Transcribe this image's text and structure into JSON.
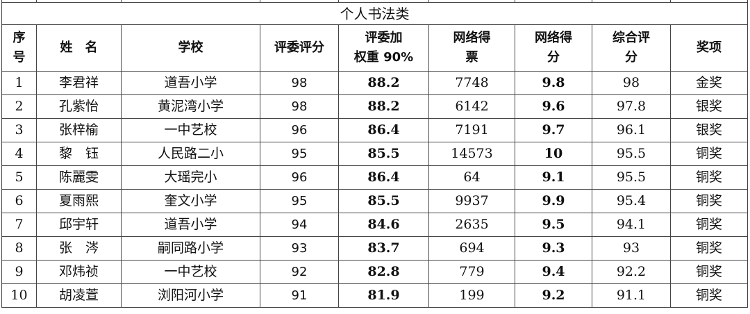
{
  "section_title": "个人书法类",
  "headers": [
    "序\n号",
    "姓　名",
    "学校",
    "评委评分",
    "评委加\n权重 90%",
    "网络得\n票",
    "网络得\n分",
    "综合评\n分",
    "奖项"
  ],
  "rows": [
    [
      "1",
      "李君祥",
      "道吾小学",
      "98",
      "88.2",
      "7748",
      "9.8",
      "98",
      "金奖"
    ],
    [
      "2",
      "孔紫怡",
      "黄泥湾小学",
      "98",
      "88.2",
      "6142",
      "9.6",
      "97.8",
      "银奖"
    ],
    [
      "3",
      "张梓榆",
      "一中艺校",
      "96",
      "86.4",
      "7191",
      "9.7",
      "96.1",
      "银奖"
    ],
    [
      "4",
      "黎　钰",
      "人民路二小",
      "95",
      "85.5",
      "14573",
      "10",
      "95.5",
      "铜奖"
    ],
    [
      "5",
      "陈麗雯",
      "大瑶完小",
      "96",
      "86.4",
      "64",
      "9.1",
      "95.5",
      "铜奖"
    ],
    [
      "6",
      "夏雨熙",
      "奎文小学",
      "95",
      "85.5",
      "9937",
      "9.9",
      "95.4",
      "铜奖"
    ],
    [
      "7",
      "邱宇轩",
      "道吾小学",
      "94",
      "84.6",
      "2635",
      "9.5",
      "94.1",
      "铜奖"
    ],
    [
      "8",
      "张　涔",
      "嗣同路小学",
      "93",
      "83.7",
      "694",
      "9.3",
      "93",
      "铜奖"
    ],
    [
      "9",
      "邓炜祯",
      "一中艺校",
      "92",
      "82.8",
      "779",
      "9.4",
      "92.2",
      "铜奖"
    ],
    [
      "10",
      "胡凌萱",
      "浏阳河小学",
      "91",
      "81.9",
      "199",
      "9.2",
      "91.1",
      "铜奖"
    ]
  ]
}
